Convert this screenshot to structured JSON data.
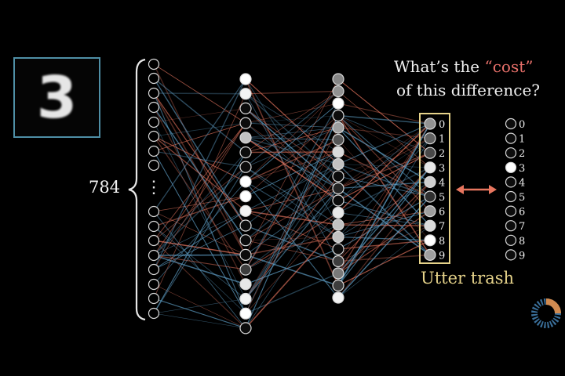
{
  "input_image": {
    "digit": "3"
  },
  "input_count": "784",
  "input_ellipsis": "⋮",
  "question": {
    "line1_prefix": "What’s the ",
    "line1_highlight": "“cost”",
    "line2": "of this difference?"
  },
  "verdict": "Utter trash",
  "output_labels": [
    "0",
    "1",
    "2",
    "3",
    "4",
    "5",
    "6",
    "7",
    "8",
    "9"
  ],
  "network_output_activations": [
    0.55,
    0.35,
    0.25,
    0.9,
    0.8,
    0.15,
    0.6,
    0.85,
    1.0,
    0.6
  ],
  "target_activations": [
    0,
    0,
    0,
    1,
    0,
    0,
    0,
    0,
    0,
    0
  ],
  "hidden_layer_1_activations": [
    1.0,
    0.95,
    0,
    0,
    0.75,
    0,
    0,
    1.0,
    1.0,
    0.95,
    0,
    0,
    0,
    0.2,
    0.9,
    0.95,
    1.0,
    0
  ],
  "hidden_layer_2_activations": [
    0.5,
    0.55,
    1.0,
    0,
    0.6,
    0.3,
    0.85,
    0.75,
    0,
    0.1,
    0,
    0.9,
    0.75,
    0.75,
    0,
    0.2,
    0.45,
    0.2,
    0.95
  ],
  "colors": {
    "background": "#000000",
    "neuron_outline": "#d8d8d8",
    "positive_weight": "#e8765f",
    "negative_weight": "#5fa0c8",
    "highlight_box": "#e6d38a",
    "arrow": "#e8765f",
    "image_border": "#4f8fa6",
    "cost_text": "#e8706a"
  }
}
